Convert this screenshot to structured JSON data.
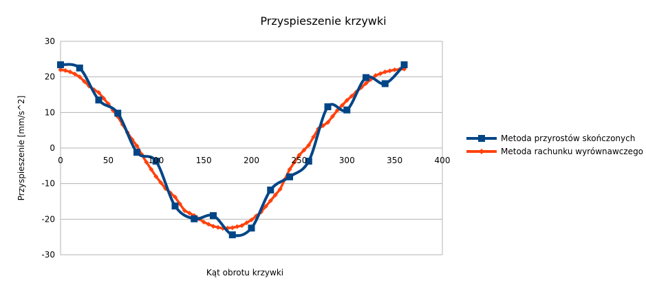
{
  "chart_data": {
    "type": "line",
    "title": "Przyspieszenie krzywki",
    "xlabel": "Kąt obrotu krzywki",
    "ylabel": "Przyspieszenie [mm/s^2]",
    "xlim": [
      0,
      400
    ],
    "ylim": [
      -30,
      30
    ],
    "xticks": [
      0,
      50,
      100,
      150,
      200,
      250,
      300,
      350,
      400
    ],
    "yticks": [
      -30,
      -20,
      -10,
      0,
      10,
      20,
      30
    ],
    "grid": "horizontal",
    "legend_position": "right",
    "series": [
      {
        "name": "Metoda przyrostów skończonych",
        "color": "#004586",
        "marker": "square",
        "smooth": true,
        "x": [
          0,
          20,
          40,
          60,
          80,
          100,
          120,
          140,
          160,
          180,
          200,
          220,
          240,
          260,
          280,
          300,
          320,
          340,
          360
        ],
        "y": [
          23.4,
          22.5,
          13.5,
          9.8,
          -1.2,
          -3.7,
          -16.3,
          -19.9,
          -19.0,
          -24.4,
          -22.5,
          -11.8,
          -8.1,
          -3.7,
          11.6,
          10.7,
          19.8,
          18.1,
          23.4
        ]
      },
      {
        "name": "Metoda rachunku wyrównawczego",
        "color": "#ff420e",
        "marker": "diamond",
        "smooth": false,
        "x": [
          0,
          5,
          10,
          15,
          20,
          25,
          30,
          35,
          40,
          45,
          50,
          55,
          60,
          65,
          70,
          75,
          80,
          85,
          90,
          95,
          100,
          105,
          110,
          115,
          120,
          125,
          130,
          135,
          140,
          145,
          150,
          155,
          160,
          165,
          170,
          175,
          180,
          185,
          190,
          195,
          200,
          205,
          210,
          215,
          220,
          225,
          230,
          235,
          240,
          245,
          250,
          255,
          260,
          265,
          270,
          275,
          280,
          285,
          290,
          295,
          300,
          305,
          310,
          315,
          320,
          325,
          330,
          335,
          340,
          345,
          350,
          355,
          360
        ],
        "y": [
          22.0,
          21.8,
          21.4,
          20.8,
          20.0,
          18.7,
          17.4,
          16.4,
          15.6,
          14.0,
          12.4,
          10.6,
          8.8,
          6.6,
          4.4,
          2.4,
          0.6,
          -1.8,
          -4.0,
          -6.0,
          -8.0,
          -9.7,
          -11.4,
          -12.6,
          -13.8,
          -15.7,
          -17.6,
          -18.3,
          -19.0,
          -19.9,
          -20.8,
          -21.4,
          -22.0,
          -22.3,
          -22.6,
          -22.5,
          -22.4,
          -22.1,
          -21.8,
          -21.0,
          -20.2,
          -19.1,
          -18.0,
          -16.4,
          -14.8,
          -13.2,
          -11.6,
          -8.8,
          -6.0,
          -4.0,
          -2.0,
          -0.6,
          0.8,
          3.1,
          5.4,
          6.3,
          7.2,
          8.9,
          10.6,
          12.0,
          13.4,
          14.6,
          15.8,
          17.0,
          18.2,
          19.3,
          20.4,
          20.9,
          21.4,
          21.7,
          22.0,
          22.1,
          22.2
        ]
      }
    ]
  }
}
